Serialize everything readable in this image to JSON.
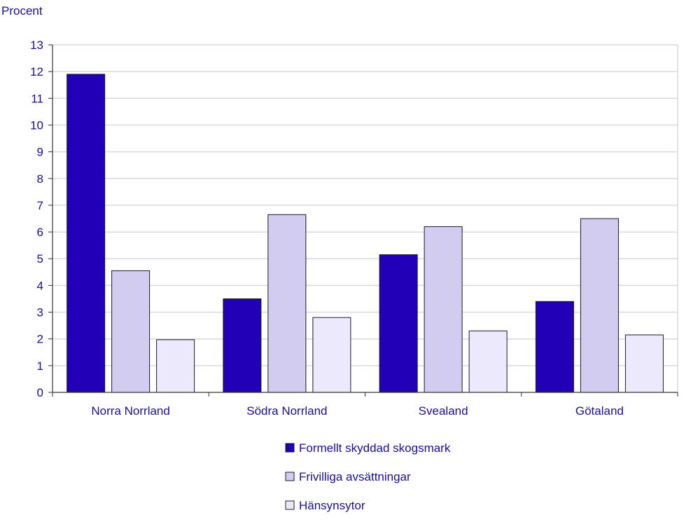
{
  "chart_data": {
    "type": "bar",
    "ylabel": "Procent",
    "xlabel": "",
    "title": "",
    "ylim": [
      0,
      13
    ],
    "yticks": [
      0,
      1,
      2,
      3,
      4,
      5,
      6,
      7,
      8,
      9,
      10,
      11,
      12,
      13
    ],
    "grid": true,
    "legend_position": "bottom",
    "categories": [
      "Norra Norrland",
      "Södra Norrland",
      "Svealand",
      "Götaland"
    ],
    "series": [
      {
        "name": "Formellt skyddad skogsmark",
        "color": "#2200b8",
        "values": [
          11.9,
          3.5,
          5.15,
          3.4
        ]
      },
      {
        "name": "Frivilliga avsättningar",
        "color": "#d2cdf0",
        "values": [
          4.55,
          6.65,
          6.2,
          6.5
        ]
      },
      {
        "name": "Hänsynsytor",
        "color": "#ebe9fb",
        "values": [
          1.97,
          2.8,
          2.3,
          2.15
        ]
      }
    ],
    "colors": {
      "text": "#1a0f9e",
      "grid": "#d9d9e2",
      "axis": "#33333a",
      "bar_outline": "#1a1a2a"
    }
  }
}
